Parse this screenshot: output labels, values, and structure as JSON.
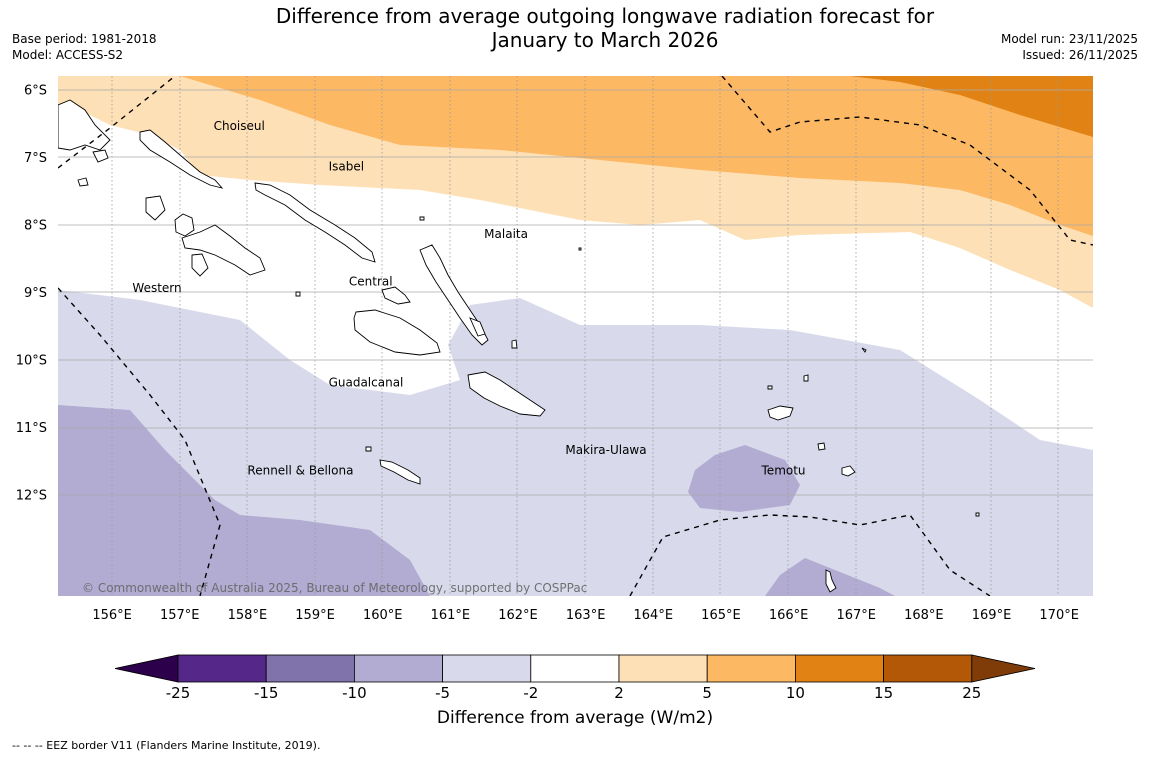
{
  "title_line1": "Difference from average outgoing longwave radiation forecast for",
  "title_line2": "January to March 2026",
  "meta": {
    "base_period": "Base period: 1981-2018",
    "model": "Model: ACCESS-S2",
    "model_run": "Model run: 23/11/2025",
    "issued": "Issued: 26/11/2025"
  },
  "map": {
    "lon_labels": [
      "156°E",
      "157°E",
      "158°E",
      "159°E",
      "160°E",
      "161°E",
      "162°E",
      "163°E",
      "164°E",
      "165°E",
      "166°E",
      "167°E",
      "168°E",
      "169°E",
      "170°E"
    ],
    "lat_labels": [
      "6°S",
      "7°S",
      "8°S",
      "9°S",
      "10°S",
      "11°S",
      "12°S"
    ],
    "lon_range": [
      155.2,
      170.5
    ],
    "lat_range": [
      -5.8,
      -13.5
    ],
    "regions": [
      {
        "name": "Choiseul",
        "lon": 157.5,
        "lat": -6.6
      },
      {
        "name": "Isabel",
        "lon": 159.2,
        "lat": -7.2
      },
      {
        "name": "Malaita",
        "lon": 161.5,
        "lat": -8.2
      },
      {
        "name": "Central",
        "lon": 159.5,
        "lat": -8.9
      },
      {
        "name": "Western",
        "lon": 156.3,
        "lat": -9.0
      },
      {
        "name": "Guadalcanal",
        "lon": 159.2,
        "lat": -10.4
      },
      {
        "name": "Makira-Ulawa",
        "lon": 162.7,
        "lat": -11.4
      },
      {
        "name": "Rennell & Bellona",
        "lon": 158.0,
        "lat": -11.7
      },
      {
        "name": "Temotu",
        "lon": 165.6,
        "lat": -11.7
      }
    ],
    "copyright": "© Commonwealth of Australia 2025, Bureau of Meteorology, supported by COSPPac"
  },
  "colorbar": {
    "title": "Difference from average (W/m2)",
    "ticks": [
      "-25",
      "-15",
      "-10",
      "-5",
      "-2",
      "2",
      "5",
      "10",
      "15",
      "25"
    ],
    "colors": [
      "#2d004b",
      "#542788",
      "#8073ac",
      "#b2abd2",
      "#d8daeb",
      "#ffffff",
      "#fee0b6",
      "#fdb863",
      "#e08214",
      "#b35806",
      "#7f3b08"
    ]
  },
  "footer": "--  --  -- EEZ border V11 (Flanders Marine Institute, 2019)."
}
